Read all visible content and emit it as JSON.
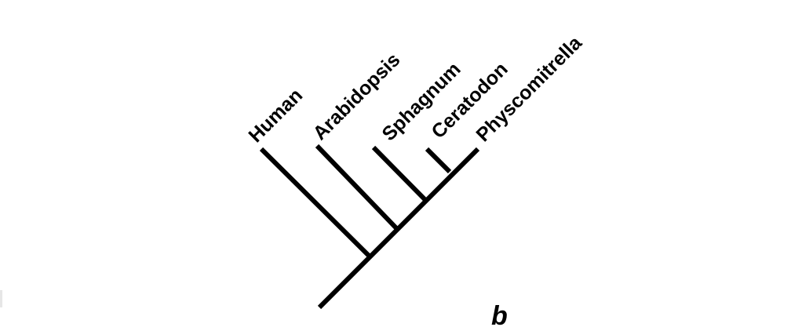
{
  "diagram": {
    "type": "cladogram",
    "taxa": [
      "Human",
      "Arabidopsis",
      "Sphagnum",
      "Ceratodon",
      "Physcomitrella"
    ],
    "panel_label": "b"
  },
  "colors": {
    "line": "#000000",
    "text": "#000000",
    "background": "#ffffff"
  }
}
